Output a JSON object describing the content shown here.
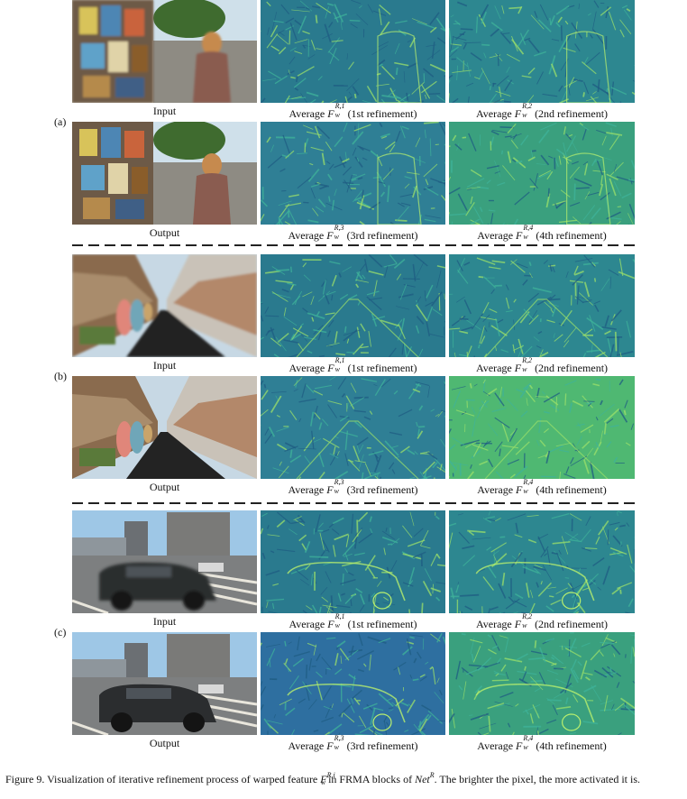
{
  "groups": [
    {
      "label": "(a)",
      "top_row": {
        "input_caption": "Input",
        "cols": [
          {
            "prefix": "Average ",
            "sym": "F",
            "sub": "w",
            "sup": "R,1",
            "suffix": " (1st refinement)"
          },
          {
            "prefix": "Average ",
            "sym": "F",
            "sub": "w",
            "sup": "R,2",
            "suffix": " (2nd refinement)"
          }
        ]
      },
      "bottom_row": {
        "input_caption": "Output",
        "cols": [
          {
            "prefix": "Average ",
            "sym": "F",
            "sub": "w",
            "sup": "R,3",
            "suffix": " (3rd refinement)"
          },
          {
            "prefix": "Average ",
            "sym": "F",
            "sub": "w",
            "sup": "R,4",
            "suffix": " (4th refinement)"
          }
        ]
      }
    },
    {
      "label": "(b)",
      "top_row": {
        "input_caption": "Input",
        "cols": [
          {
            "prefix": "Average ",
            "sym": "F",
            "sub": "w",
            "sup": "R,1",
            "suffix": " (1st refinement)"
          },
          {
            "prefix": "Average ",
            "sym": "F",
            "sub": "w",
            "sup": "R,2",
            "suffix": " (2nd refinement)"
          }
        ]
      },
      "bottom_row": {
        "input_caption": "Output",
        "cols": [
          {
            "prefix": "Average ",
            "sym": "F",
            "sub": "w",
            "sup": "R,3",
            "suffix": " (3rd refinement)"
          },
          {
            "prefix": "Average ",
            "sym": "F",
            "sub": "w",
            "sup": "R,4",
            "suffix": " (4th refinement)"
          }
        ]
      }
    },
    {
      "label": "(c)",
      "top_row": {
        "input_caption": "Input",
        "cols": [
          {
            "prefix": "Average ",
            "sym": "F",
            "sub": "w",
            "sup": "R,1",
            "suffix": " (1st refinement)"
          },
          {
            "prefix": "Average ",
            "sym": "F",
            "sub": "w",
            "sup": "R,2",
            "suffix": " (2nd refinement)"
          }
        ]
      },
      "bottom_row": {
        "input_caption": "Output",
        "cols": [
          {
            "prefix": "Average ",
            "sym": "F",
            "sub": "w",
            "sup": "R,3",
            "suffix": " (3rd refinement)"
          },
          {
            "prefix": "Average ",
            "sym": "F",
            "sub": "w",
            "sup": "R,4",
            "suffix": " (4th refinement)"
          }
        ]
      }
    }
  ],
  "figure_caption": {
    "part1": "Figure 9. Visualization of iterative refinement process of warped feature ",
    "sym": "F",
    "sub": "w",
    "sup": "R,i",
    "part2": " in FRMA blocks of ",
    "net": "Net",
    "net_sup": "R",
    "part3": ". The brighter the pixel, the more activated it is."
  },
  "colors": {
    "feature_dark": "#2a6b8c",
    "feature_mid": "#2f8f8a",
    "feature_bright": "#7fd36b",
    "feature_green_bg": "#3aa67c"
  }
}
